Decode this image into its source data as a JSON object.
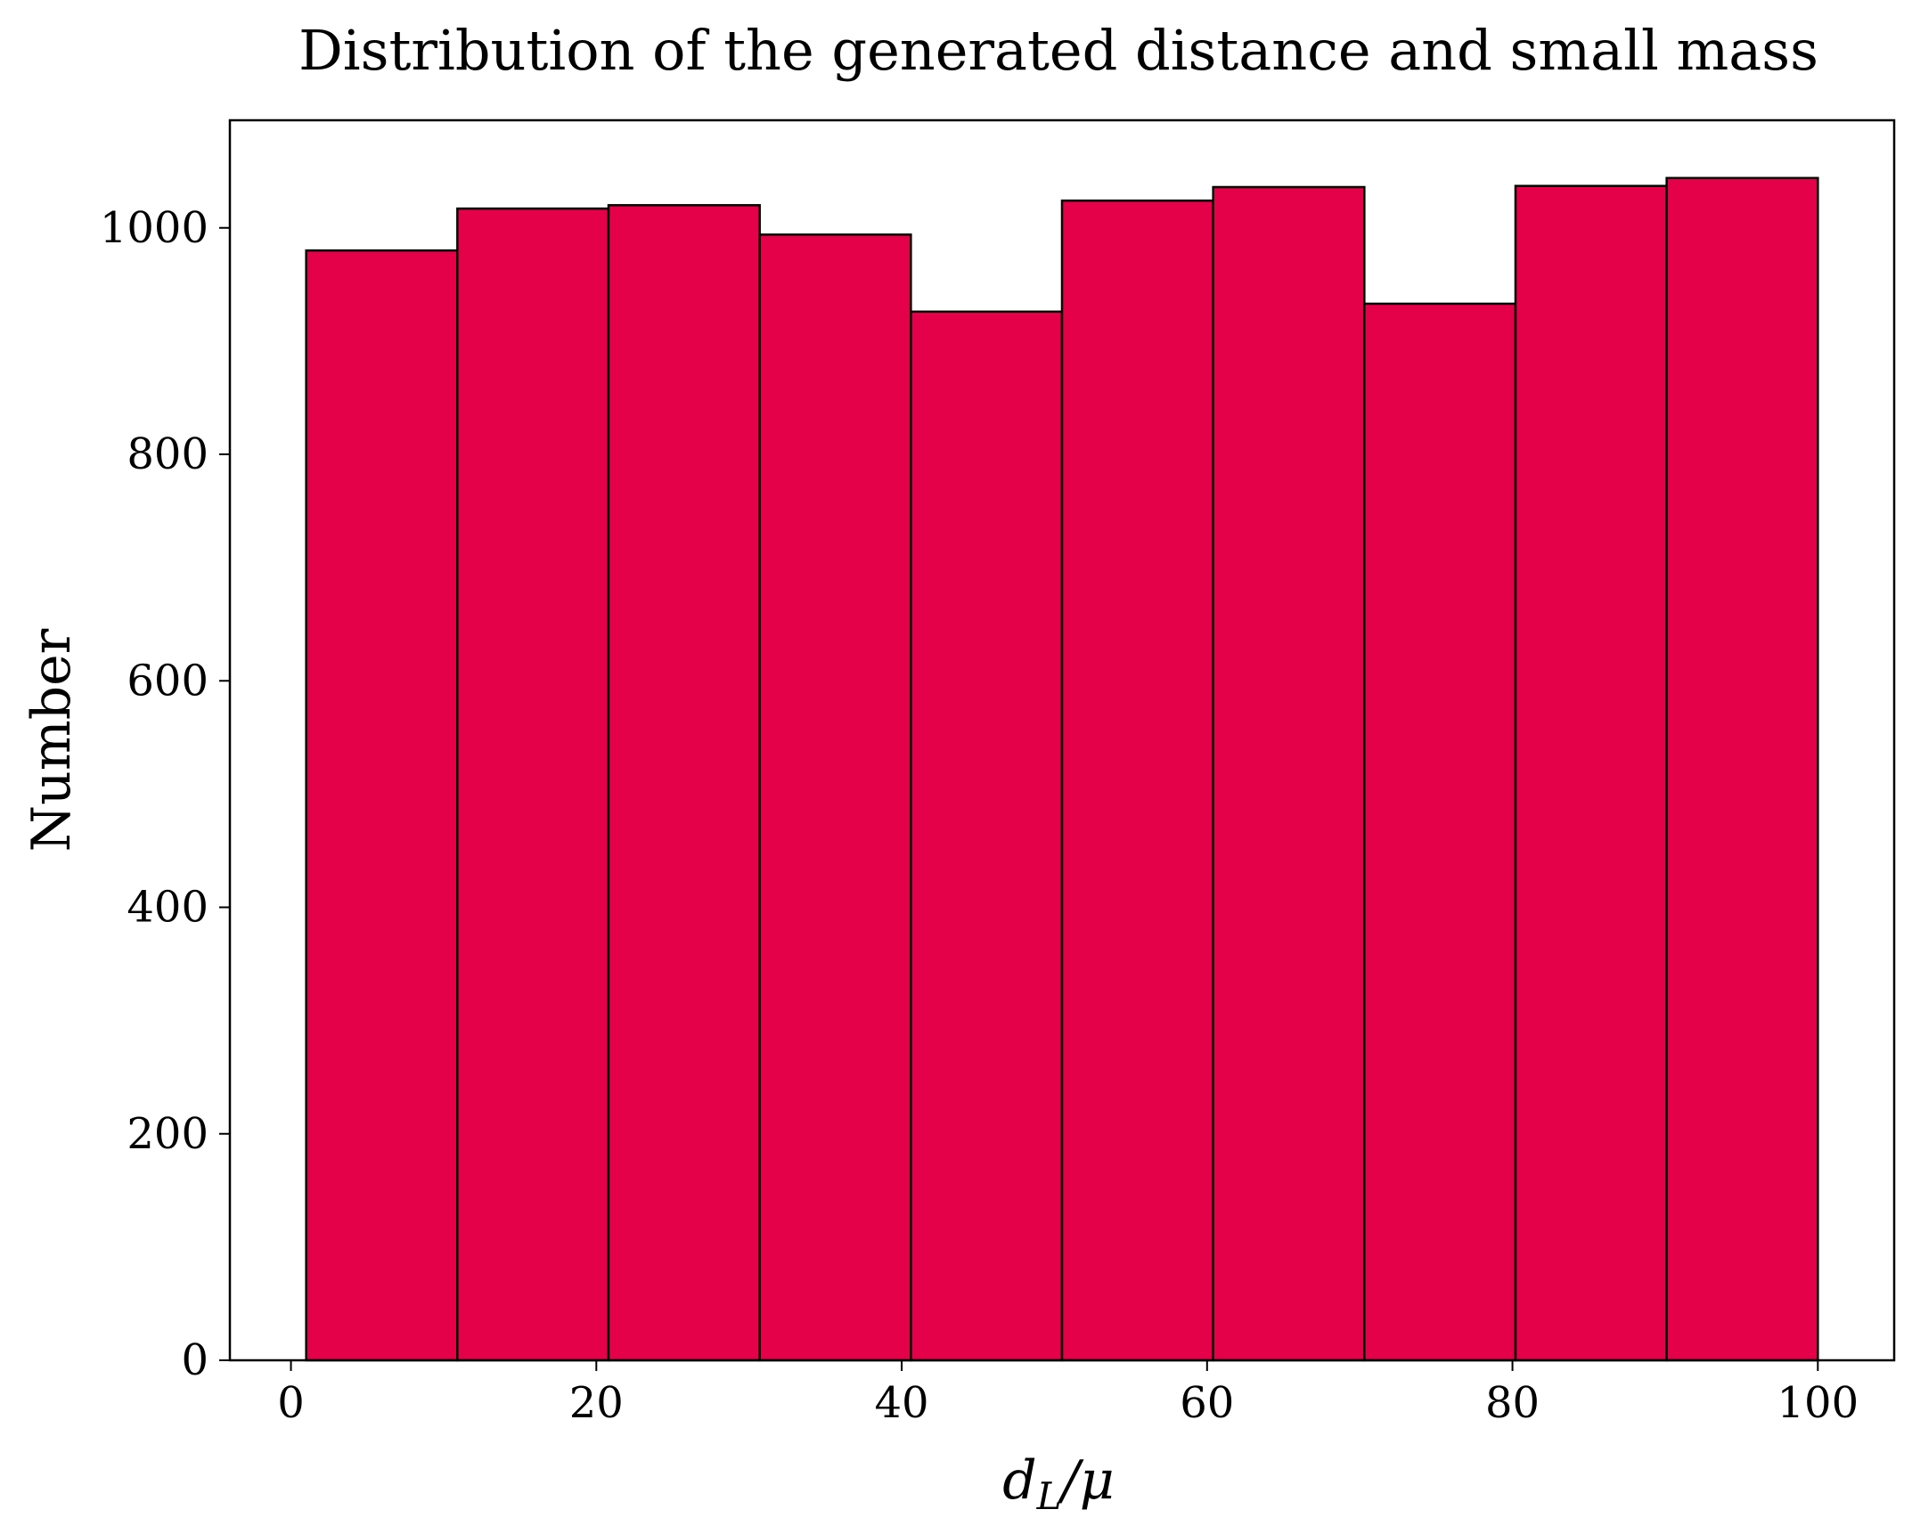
{
  "chart_data": {
    "type": "bar",
    "title": "Distribution of the generated distance and small mass",
    "xlabel_main": "d",
    "xlabel_sub": "L",
    "xlabel_rest": "/μ",
    "ylabel": "Number",
    "bin_edges": [
      1.0,
      10.9,
      20.8,
      30.7,
      40.6,
      50.5,
      60.4,
      70.3,
      80.2,
      90.1,
      100.0
    ],
    "values": [
      980,
      1017,
      1020,
      994,
      926,
      1024,
      1036,
      933,
      1037,
      1044
    ],
    "xlim": [
      -4.0,
      105.0
    ],
    "ylim": [
      0,
      1095
    ],
    "xticks": [
      0,
      20,
      40,
      60,
      80,
      100
    ],
    "yticks": [
      0,
      200,
      400,
      600,
      800,
      1000
    ],
    "bar_color": "#e5004a",
    "edge_color": "#000000",
    "grid": false,
    "legend": false
  }
}
